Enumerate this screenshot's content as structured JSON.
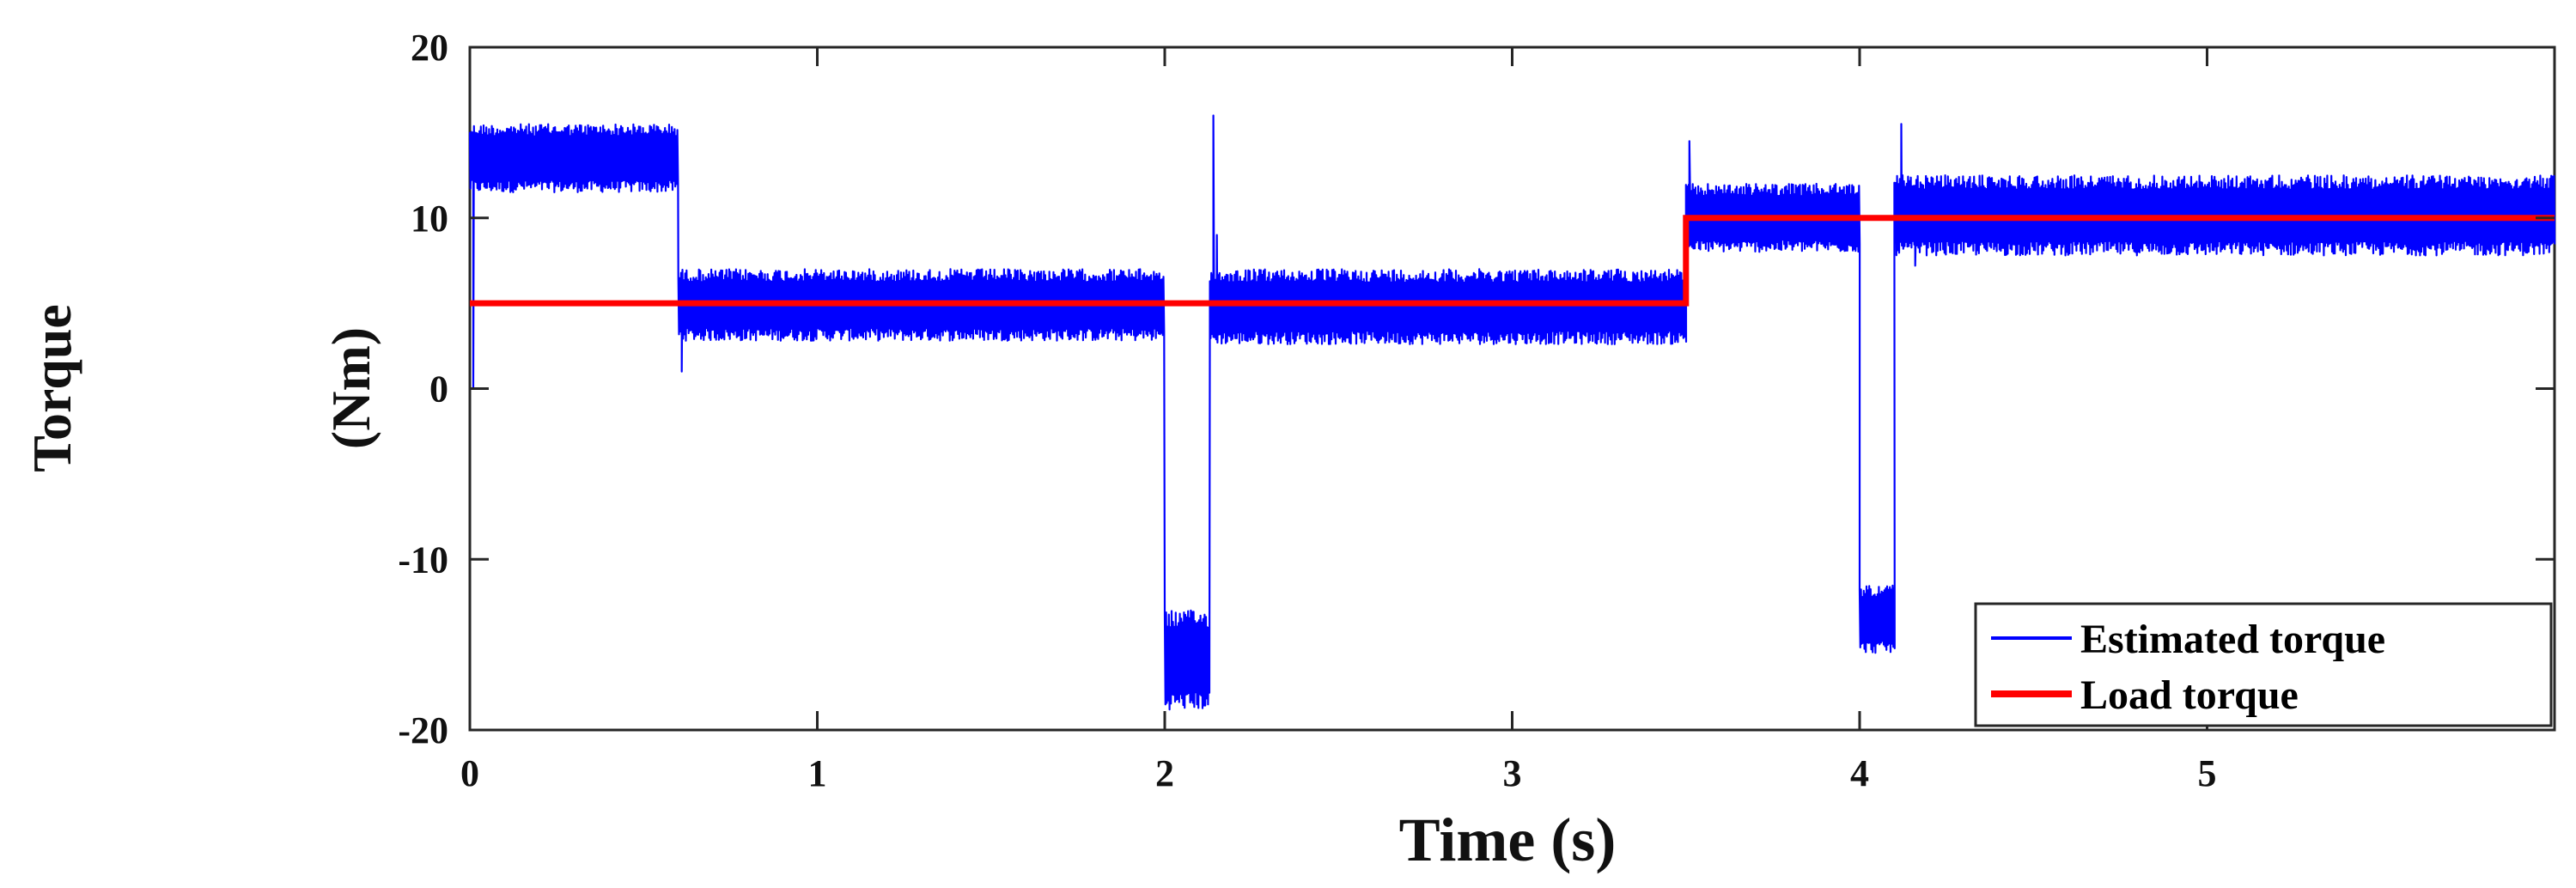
{
  "chart_data": {
    "type": "line",
    "title": "",
    "xlabel": "Time (s)",
    "ylabel_outer": "Torque",
    "ylabel_inner": "(Nm)",
    "xlim": [
      0,
      6
    ],
    "ylim": [
      -20,
      20
    ],
    "x_ticks": [
      0,
      1,
      2,
      3,
      4,
      5
    ],
    "x_tick_labels": [
      "0",
      "1",
      "2",
      "3",
      "4",
      "5"
    ],
    "y_ticks": [
      -20,
      -10,
      0,
      10,
      20
    ],
    "y_tick_labels": [
      "-20",
      "-10",
      "0",
      "10",
      "20"
    ],
    "grid": false,
    "legend_position": "bottom-right",
    "series": [
      {
        "name": "Estimated torque",
        "color": "#0000ff",
        "segments": [
          {
            "x_start": 0.0,
            "x_end": 0.6,
            "min": 11.5,
            "max": 15.5
          },
          {
            "x_start": 0.6,
            "x_end": 2.0,
            "min": 2.8,
            "max": 7.0
          },
          {
            "x_start": 2.0,
            "x_end": 2.13,
            "min": -18.8,
            "max": -13.0
          },
          {
            "x_start": 2.13,
            "x_end": 3.5,
            "min": 2.6,
            "max": 7.0
          },
          {
            "x_start": 3.5,
            "x_end": 4.0,
            "min": 8.0,
            "max": 12.0
          },
          {
            "x_start": 4.0,
            "x_end": 4.1,
            "min": -15.5,
            "max": -11.5
          },
          {
            "x_start": 4.1,
            "x_end": 6.0,
            "min": 7.8,
            "max": 12.5
          }
        ],
        "spikes": [
          {
            "x": 0.01,
            "y": 0.0
          },
          {
            "x": 0.61,
            "y": 1.0
          },
          {
            "x": 2.14,
            "y": 16.0
          },
          {
            "x": 2.15,
            "y": 9.0
          },
          {
            "x": 3.51,
            "y": 14.5
          },
          {
            "x": 4.12,
            "y": 15.5
          },
          {
            "x": 4.16,
            "y": 7.2
          }
        ]
      },
      {
        "name": "Load torque",
        "color": "#ff0000",
        "x": [
          0.0,
          3.5,
          3.5,
          6.0
        ],
        "y": [
          5,
          5,
          10,
          10
        ]
      }
    ]
  }
}
